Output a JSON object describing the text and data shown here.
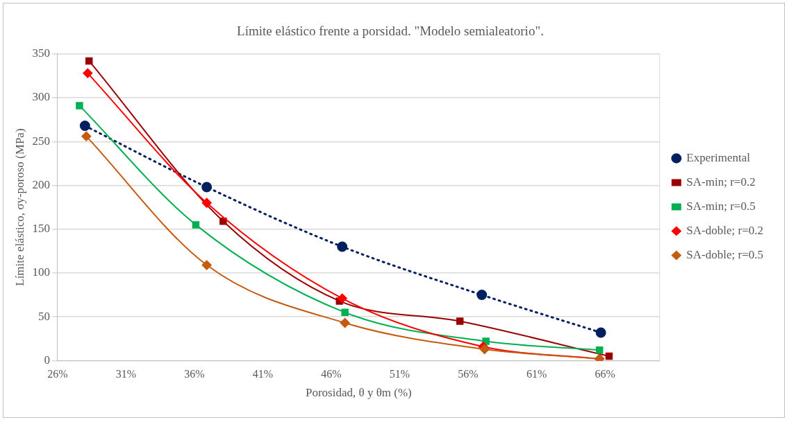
{
  "chart_data": {
    "type": "line",
    "title": "Límite elástico frente a porsidad. \"Modelo semialeatorio\".",
    "xlabel": "Porosidad, θ y θm (%)",
    "ylabel": "Límite elástico, σy-poroso (MPa)",
    "xlim": [
      26,
      70
    ],
    "xticks": [
      {
        "value": 26,
        "label": "26%"
      },
      {
        "value": 31,
        "label": "31%"
      },
      {
        "value": 36,
        "label": "36%"
      },
      {
        "value": 41,
        "label": "41%"
      },
      {
        "value": 46,
        "label": "46%"
      },
      {
        "value": 51,
        "label": "51%"
      },
      {
        "value": 56,
        "label": "56%"
      },
      {
        "value": 61,
        "label": "61%"
      },
      {
        "value": 66,
        "label": "66%"
      }
    ],
    "ylim": [
      0,
      350
    ],
    "yticks": [
      0,
      50,
      100,
      150,
      200,
      250,
      300,
      350
    ],
    "grid": "y",
    "legend": "right",
    "series": [
      {
        "name": "Experimental",
        "color": "#002060",
        "marker": "circle",
        "line_style": "dotted",
        "x": [
          28.0,
          36.9,
          46.8,
          57.0,
          65.7
        ],
        "values": [
          268,
          198,
          130,
          75,
          32
        ]
      },
      {
        "name": "SA-min; r=0.2",
        "color": "#990000",
        "marker": "square",
        "line_style": "solid",
        "x": [
          28.3,
          38.1,
          46.6,
          55.4,
          66.3
        ],
        "values": [
          342,
          159,
          68,
          45,
          5
        ]
      },
      {
        "name": "SA-min; r=0.5",
        "color": "#00b050",
        "marker": "square",
        "line_style": "solid",
        "x": [
          27.6,
          36.1,
          47.0,
          57.3,
          65.6
        ],
        "values": [
          291,
          155,
          55,
          22,
          12
        ]
      },
      {
        "name": "SA-doble; r=0.2",
        "color": "#ff0000",
        "marker": "diamond",
        "line_style": "solid",
        "x": [
          28.2,
          36.9,
          46.8,
          57.1,
          65.6
        ],
        "values": [
          328,
          180,
          71,
          16,
          2
        ]
      },
      {
        "name": "SA-doble; r=0.5",
        "color": "#c55a11",
        "marker": "diamond",
        "line_style": "solid",
        "x": [
          28.1,
          36.9,
          47.0,
          57.2,
          65.6
        ],
        "values": [
          256,
          109,
          43,
          13,
          2
        ]
      }
    ]
  }
}
